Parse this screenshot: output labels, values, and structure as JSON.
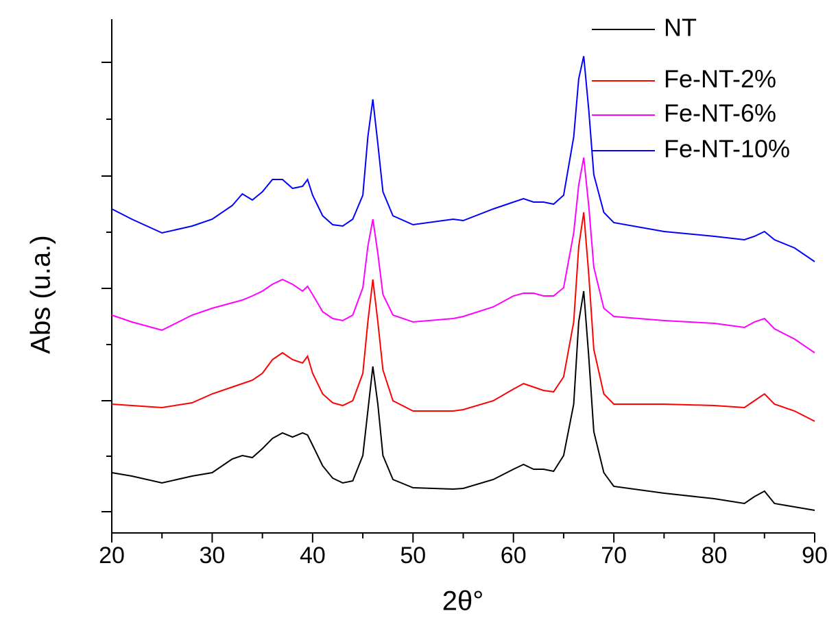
{
  "chart_data": {
    "type": "line",
    "xlabel": "2θ°",
    "ylabel": "Abs (u.a.)",
    "xlim": [
      20,
      90
    ],
    "xticks": [
      20,
      30,
      40,
      50,
      60,
      70,
      80,
      90
    ],
    "xminor_ticks": [
      25,
      35,
      45,
      55,
      65,
      75,
      85
    ],
    "ylim": [
      0,
      750
    ],
    "yticks": [
      31,
      112,
      193,
      275,
      357,
      439,
      521,
      604,
      687
    ],
    "legend": "upper right",
    "x": [
      20,
      22,
      25,
      28,
      30,
      32,
      33,
      34,
      35,
      36,
      37,
      38,
      39,
      39.5,
      40,
      41,
      42,
      43,
      44,
      45,
      45.5,
      46,
      46.5,
      47,
      48,
      50,
      54,
      55,
      58,
      60,
      61,
      62,
      63,
      64,
      65,
      66,
      66.5,
      67,
      67.5,
      68,
      69,
      70,
      75,
      80,
      83,
      84,
      85,
      86,
      88,
      90
    ],
    "series": [
      {
        "name": "NT",
        "color": "#000000",
        "values": [
          88,
          83,
          73,
          83,
          88,
          108,
          113,
          110,
          123,
          138,
          146,
          140,
          146,
          143,
          128,
          98,
          80,
          73,
          76,
          113,
          178,
          243,
          188,
          113,
          78,
          66,
          64,
          65,
          78,
          93,
          100,
          93,
          93,
          90,
          113,
          188,
          308,
          353,
          258,
          148,
          88,
          68,
          58,
          50,
          43,
          53,
          61,
          43,
          38,
          33
        ]
      },
      {
        "name": "Fe-NT-2%",
        "color": "#ff0000",
        "values": [
          188,
          186,
          183,
          190,
          203,
          213,
          218,
          223,
          233,
          253,
          263,
          253,
          248,
          258,
          233,
          203,
          190,
          186,
          193,
          233,
          308,
          370,
          308,
          238,
          193,
          178,
          178,
          180,
          193,
          210,
          218,
          213,
          208,
          206,
          228,
          308,
          418,
          468,
          378,
          268,
          203,
          188,
          188,
          186,
          183,
          193,
          203,
          188,
          178,
          163
        ]
      },
      {
        "name": "Fe-NT-6%",
        "color": "#ff00ff",
        "values": [
          318,
          308,
          296,
          318,
          328,
          336,
          340,
          346,
          353,
          363,
          370,
          363,
          353,
          360,
          348,
          323,
          313,
          310,
          318,
          358,
          418,
          458,
          408,
          348,
          318,
          308,
          313,
          316,
          330,
          346,
          350,
          350,
          346,
          346,
          358,
          438,
          508,
          548,
          478,
          388,
          328,
          316,
          310,
          306,
          300,
          308,
          313,
          298,
          283,
          263
        ]
      },
      {
        "name": "Fe-NT-10%",
        "color": "#0000ff",
        "values": [
          473,
          458,
          438,
          448,
          458,
          478,
          495,
          486,
          498,
          516,
          516,
          503,
          506,
          516,
          493,
          463,
          450,
          448,
          458,
          493,
          578,
          633,
          568,
          498,
          463,
          450,
          458,
          456,
          473,
          483,
          488,
          483,
          483,
          480,
          493,
          578,
          663,
          696,
          618,
          523,
          468,
          453,
          440,
          433,
          428,
          433,
          440,
          428,
          416,
          396
        ]
      }
    ]
  }
}
